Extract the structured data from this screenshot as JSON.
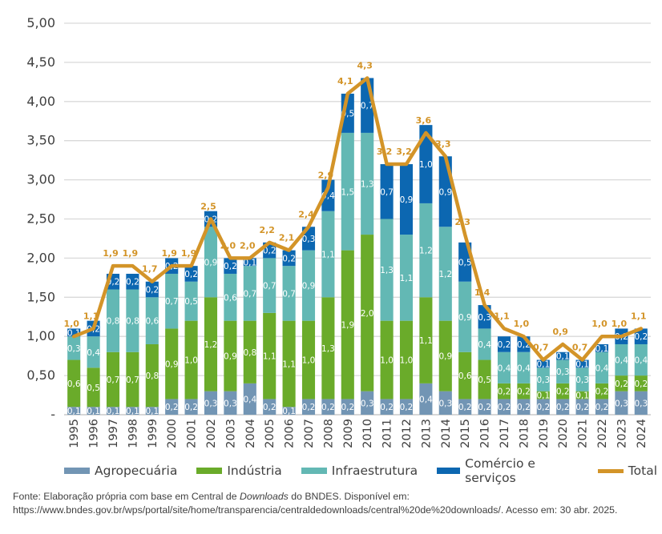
{
  "chart_data": {
    "type": "bar",
    "stacked": true,
    "categories": [
      "1995",
      "1996",
      "1997",
      "1998",
      "1999",
      "2000",
      "2001",
      "2002",
      "2003",
      "2004",
      "2005",
      "2006",
      "2007",
      "2008",
      "2009",
      "2010",
      "2011",
      "2012",
      "2013",
      "2014",
      "2015",
      "2016",
      "2017",
      "2018",
      "2019",
      "2020",
      "2021",
      "2022",
      "2023",
      "2024"
    ],
    "series": [
      {
        "name": "Agropecuária",
        "color": "#7295b4",
        "values": [
          0.1,
          0.1,
          0.1,
          0.1,
          0.1,
          0.2,
          0.2,
          0.3,
          0.3,
          0.4,
          0.2,
          0.1,
          0.2,
          0.2,
          0.2,
          0.3,
          0.2,
          0.2,
          0.4,
          0.3,
          0.2,
          0.2,
          0.2,
          0.2,
          0.2,
          0.2,
          0.2,
          0.2,
          0.3,
          0.3
        ]
      },
      {
        "name": "Indústria",
        "color": "#6aab2a",
        "values": [
          0.6,
          0.5,
          0.7,
          0.7,
          0.8,
          0.9,
          1.0,
          1.2,
          0.9,
          0.8,
          1.1,
          1.1,
          1.0,
          1.3,
          1.9,
          2.0,
          1.0,
          1.0,
          1.1,
          0.9,
          0.6,
          0.5,
          0.2,
          0.2,
          0.1,
          0.2,
          0.1,
          0.2,
          0.2,
          0.2
        ]
      },
      {
        "name": "Infraestrutura",
        "color": "#63b8b4",
        "values": [
          0.3,
          0.4,
          0.8,
          0.8,
          0.6,
          0.7,
          0.5,
          0.9,
          0.6,
          0.7,
          0.7,
          0.7,
          0.9,
          1.1,
          1.5,
          1.3,
          1.3,
          1.1,
          1.2,
          1.2,
          0.9,
          0.4,
          0.4,
          0.4,
          0.3,
          0.3,
          0.3,
          0.4,
          0.4,
          0.4
        ]
      },
      {
        "name": "Comércio e serviços",
        "color": "#0c67b1",
        "values": [
          0.1,
          0.2,
          0.2,
          0.2,
          0.2,
          0.2,
          0.2,
          0.2,
          0.2,
          0.1,
          0.2,
          0.2,
          0.3,
          0.4,
          0.5,
          0.7,
          0.7,
          0.9,
          1.0,
          0.9,
          0.5,
          0.3,
          0.2,
          0.2,
          0.1,
          0.1,
          0.1,
          0.1,
          0.2,
          0.2
        ]
      }
    ],
    "line_series": {
      "name": "Total",
      "color": "#d39428",
      "values": [
        1.0,
        1.1,
        1.9,
        1.9,
        1.7,
        1.9,
        1.9,
        2.5,
        2.0,
        2.0,
        2.2,
        2.1,
        2.4,
        2.9,
        4.1,
        4.3,
        3.2,
        3.2,
        3.6,
        3.3,
        2.3,
        1.4,
        1.1,
        1.0,
        0.7,
        0.9,
        0.7,
        1.0,
        1.0,
        1.1
      ]
    },
    "segment_labels": [
      [
        "0,1",
        "0,1",
        "0,1",
        "0,1",
        "0,1",
        "0,2",
        "0,2",
        "0,3",
        "0,3",
        "0,4",
        "0,2",
        "0,1",
        "0,2",
        "0,2",
        "0,2",
        "0,3",
        "0,2",
        "0,2",
        "0,4",
        "0,3",
        "0,2",
        "0,2",
        "0,2",
        "0,2",
        "0,2",
        "0,2",
        "0,2",
        "0,2",
        "0,3",
        "0,3"
      ],
      [
        "0,6",
        "0,5",
        "0,7",
        "0,7",
        "0,8",
        "0,9",
        "1,0",
        "1,2",
        "0,9",
        "0,8",
        "1,1",
        "1,1",
        "1,0",
        "1,3",
        "1,9",
        "2,0",
        "1,0",
        "1,0",
        "1,1",
        "0,9",
        "0,6",
        "0,5",
        "0,2",
        "0,2",
        "0,1",
        "0,2",
        "0,1",
        "0,2",
        "0,2",
        "0,2"
      ],
      [
        "0,3",
        "0,4",
        "0,8",
        "0,8",
        "0,6",
        "0,7",
        "0,5",
        "0,9",
        "0,6",
        "0,7",
        "0,7",
        "0,7",
        "0,9",
        "1,1",
        "1,5",
        "1,3",
        "1,3",
        "1,1",
        "1,2",
        "1,2",
        "0,9",
        "0,4",
        "0,4",
        "0,4",
        "0,3",
        "0,3",
        "0,3",
        "0,4",
        "0,4",
        "0,4"
      ],
      [
        "0,1",
        "0,2",
        "0,2",
        "0,2",
        "0,2",
        "0,2",
        "0,2",
        "0,2",
        "0,2",
        "0,1",
        "0,2",
        "0,2",
        "0,3",
        "0,4",
        "0,5",
        "0,7",
        "0,7",
        "0,9",
        "1,0",
        "0,9",
        "0,5",
        "0,3",
        "0,2",
        "0,2",
        "0,1",
        "0,1",
        "0,1",
        "0,1",
        "0,2",
        "0,2"
      ]
    ],
    "total_labels": [
      "1,0",
      "1,1",
      "1,9",
      "1,9",
      "1,7",
      "1,9",
      "1,9",
      "2,5",
      "2,0",
      "2,0",
      "2,2",
      "2,1",
      "2,4",
      "2,9",
      "4,1",
      "4,3",
      "3,2",
      "3,2",
      "3,6",
      "3,3",
      "2,3",
      "1,4",
      "1,1",
      "1,0",
      "0,7",
      "0,9",
      "0,7",
      "1,0",
      "1,0",
      "1,1"
    ],
    "yticks": [
      0,
      0.5,
      1.0,
      1.5,
      2.0,
      2.5,
      3.0,
      3.5,
      4.0,
      4.5,
      5.0
    ],
    "ytick_labels": [
      "-",
      "0,50",
      "1,00",
      "1,50",
      "2,00",
      "2,50",
      "3,00",
      "3,50",
      "4,00",
      "4,50",
      "5,00"
    ],
    "ylim": [
      0,
      5
    ],
    "title": "",
    "xlabel": "",
    "ylabel": "",
    "grid": true,
    "legend_position": "bottom"
  },
  "legend": [
    {
      "label": "Agropecuária",
      "color": "#7295b4"
    },
    {
      "label": "Indústria",
      "color": "#6aab2a"
    },
    {
      "label": "Infraestrutura",
      "color": "#63b8b4"
    },
    {
      "label": "Comércio e serviços",
      "color": "#0c67b1"
    },
    {
      "label": "Total",
      "color": "#d39428"
    }
  ],
  "source": {
    "prefix": "Fonte: Elaboração própria com base em Central de ",
    "italic": "Downloads",
    "suffix": " do BNDES. Disponível em: https://www.bndes.gov.br/wps/portal/site/home/transparencia/centraldedownloads/central%20de%20downloads/. Acesso em: 30 abr. 2025."
  }
}
